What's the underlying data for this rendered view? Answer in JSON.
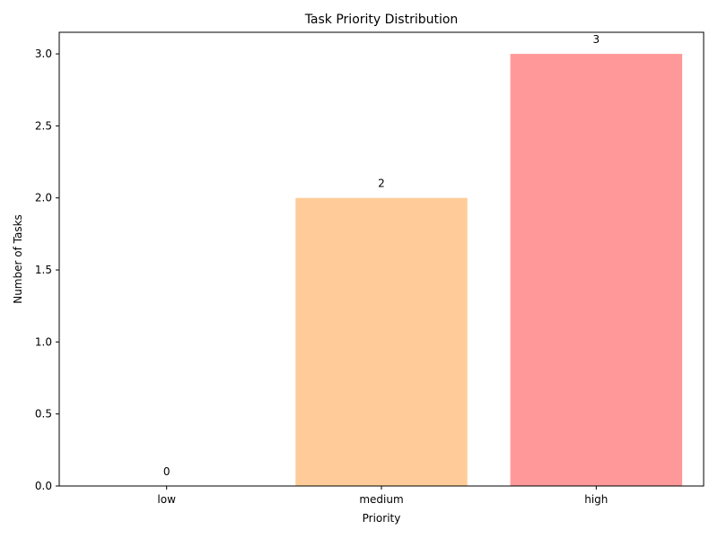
{
  "chart_data": {
    "type": "bar",
    "title": "Task Priority Distribution",
    "xlabel": "Priority",
    "ylabel": "Number of Tasks",
    "categories": [
      "low",
      "medium",
      "high"
    ],
    "values": [
      0,
      2,
      3
    ],
    "data_labels": [
      "0",
      "2",
      "3"
    ],
    "colors": [
      "#99ff99",
      "#ffcc99",
      "#ff9999"
    ],
    "ylim": [
      0,
      3.15
    ],
    "yticks": [
      0.0,
      0.5,
      1.0,
      1.5,
      2.0,
      2.5,
      3.0
    ],
    "ytick_labels": [
      "0.0",
      "0.5",
      "1.0",
      "1.5",
      "2.0",
      "2.5",
      "3.0"
    ],
    "grid": false,
    "legend": false
  }
}
